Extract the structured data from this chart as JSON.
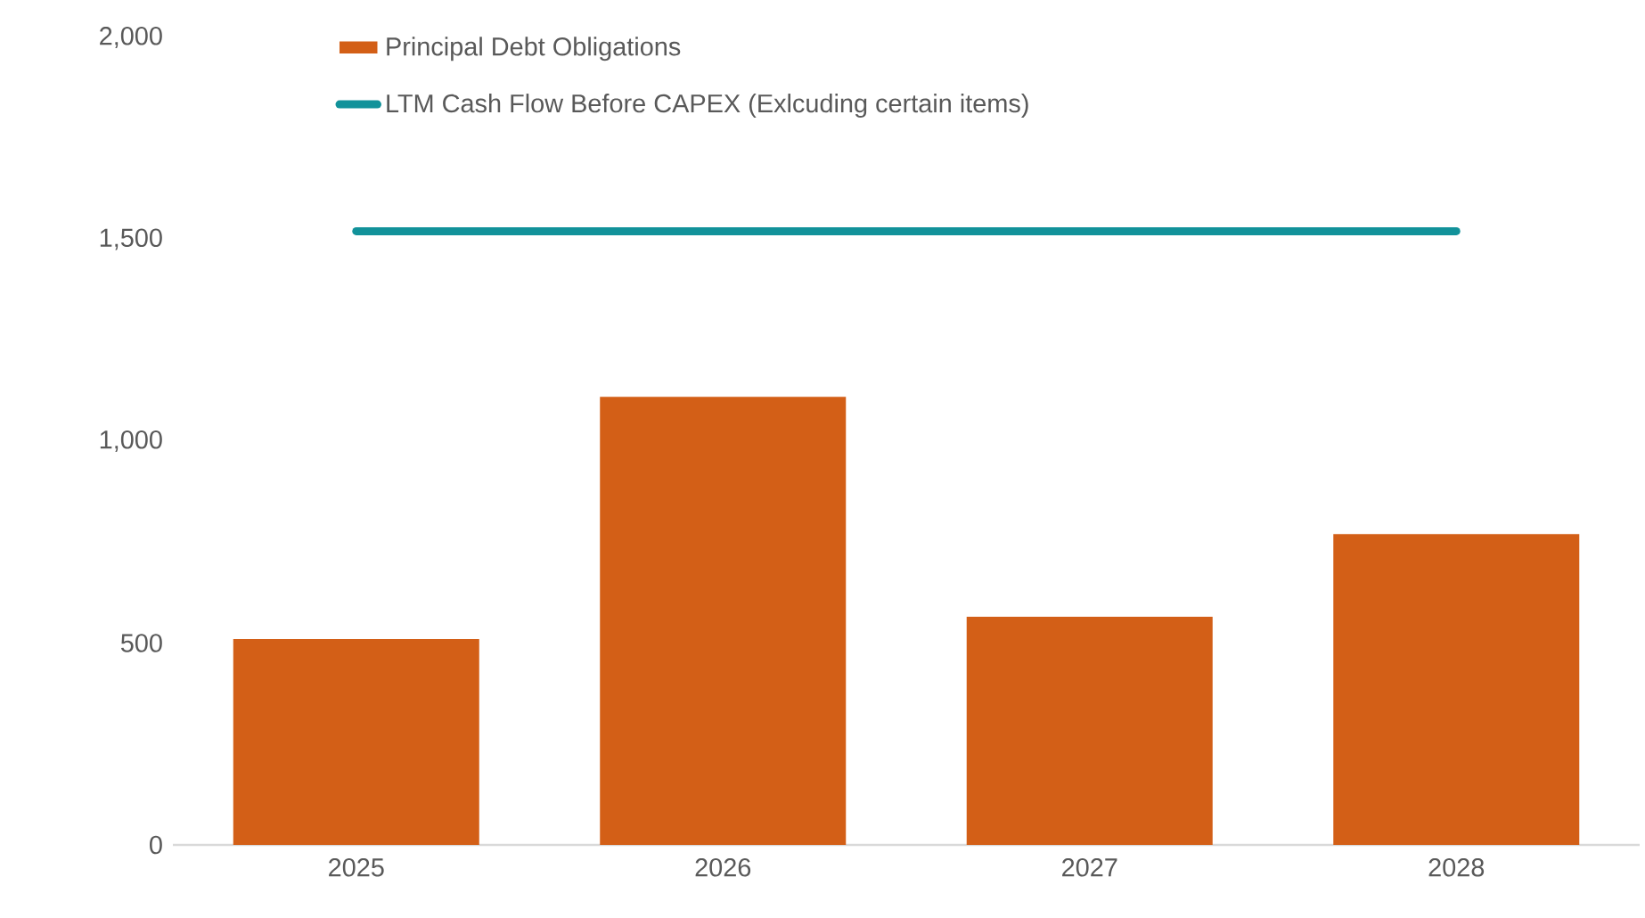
{
  "chart_data": {
    "type": "bar",
    "categories": [
      "2025",
      "2026",
      "2027",
      "2028"
    ],
    "series": [
      {
        "name": "Principal Debt Obligations",
        "color": "#d35f17",
        "values": [
          510,
          1110,
          565,
          770
        ]
      },
      {
        "name": "LTM Cash Flow Before CAPEX (Exlcuding certain items)",
        "type": "line",
        "color": "#12929a",
        "values": [
          1520,
          1520,
          1520,
          1520
        ]
      }
    ],
    "ylim": [
      0,
      2000
    ],
    "yticks": [
      0,
      500,
      {
        "value": 1000,
        "label": "1,000"
      },
      {
        "value": 1500,
        "label": "1,500"
      },
      {
        "value": 2000,
        "label": "2,000"
      }
    ],
    "legend": "top"
  }
}
